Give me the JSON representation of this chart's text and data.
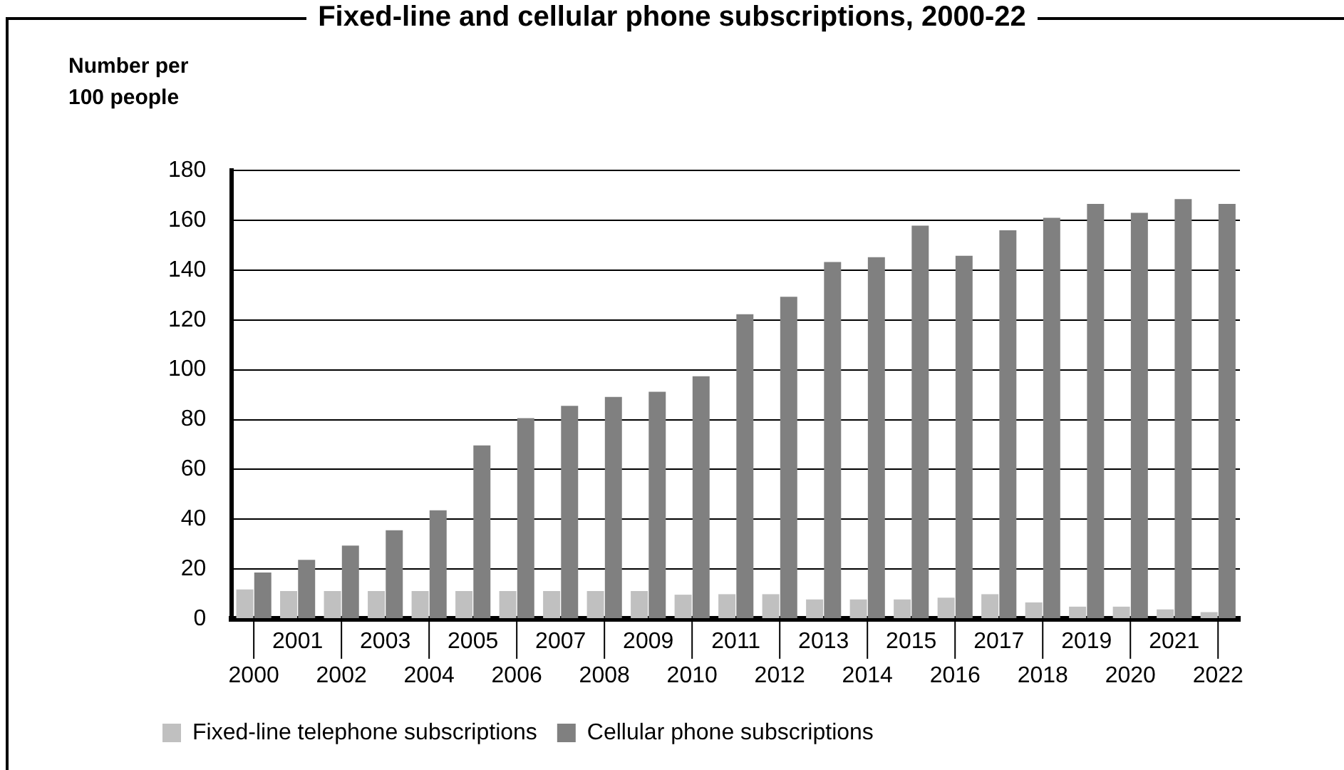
{
  "chart_data": {
    "type": "bar",
    "title": "Fixed-line and cellular phone subscriptions, 2000-22",
    "ylabel": "Number per\n100 people",
    "categories": [
      "2000",
      "2001",
      "2002",
      "2003",
      "2004",
      "2005",
      "2006",
      "2007",
      "2008",
      "2009",
      "2010",
      "2011",
      "2012",
      "2013",
      "2014",
      "2015",
      "2016",
      "2017",
      "2018",
      "2019",
      "2020",
      "2021",
      "2022"
    ],
    "series": [
      {
        "name": "Fixed-line telephone subscriptions",
        "color": "#c0c0c0",
        "values": [
          11.8,
          11.2,
          11.2,
          11.2,
          11.2,
          11.2,
          11.2,
          11.2,
          11.2,
          11.2,
          9.7,
          9.9,
          9.9,
          7.8,
          7.8,
          7.8,
          8.5,
          9.9,
          6.6,
          4.9,
          4.9,
          3.8,
          2.7
        ]
      },
      {
        "name": "Cellular phone subscriptions",
        "color": "#808080",
        "values": [
          18.6,
          23.7,
          29.4,
          35.6,
          43.6,
          69.6,
          80.6,
          85.5,
          89.1,
          91.2,
          97.4,
          122.3,
          129.3,
          143.3,
          145.2,
          157.9,
          145.8,
          156,
          161,
          166.6,
          163,
          168.5,
          166.6
        ]
      }
    ],
    "ylim": [
      0,
      180
    ],
    "yticks": [
      0,
      20,
      40,
      60,
      80,
      100,
      120,
      140,
      160,
      180
    ],
    "grid": "y",
    "legend": "bottom"
  }
}
